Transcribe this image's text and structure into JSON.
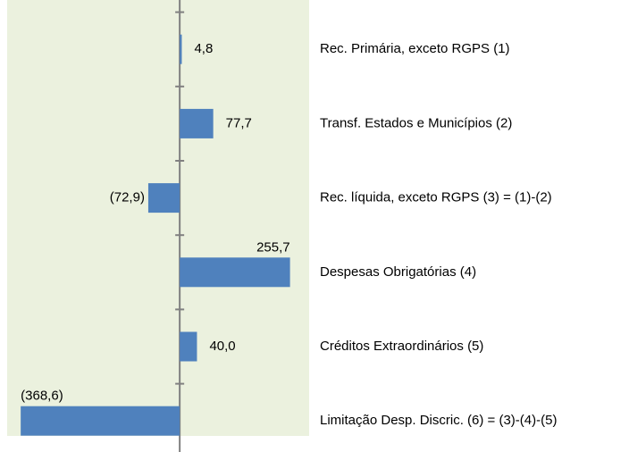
{
  "chart_data": {
    "type": "bar",
    "orientation": "horizontal",
    "categories": [
      "Rec. Primária, exceto RGPS (1)",
      "Transf. Estados e Municípios  (2)",
      "Rec. líquida, exceto RGPS (3) = (1)-(2)",
      "Despesas Obrigatórias (4)",
      "Créditos Extraordinários (5)",
      "Limitação Desp. Discric. (6) = (3)-(4)-(5)"
    ],
    "values": [
      4.8,
      77.7,
      -72.9,
      255.7,
      40.0,
      -368.6
    ],
    "value_labels": [
      "4,8",
      "77,7",
      "(72,9)",
      "255,7",
      "40,0",
      "(368,6)"
    ],
    "color": "#4f81bd",
    "xlim": [
      -400,
      300
    ]
  }
}
